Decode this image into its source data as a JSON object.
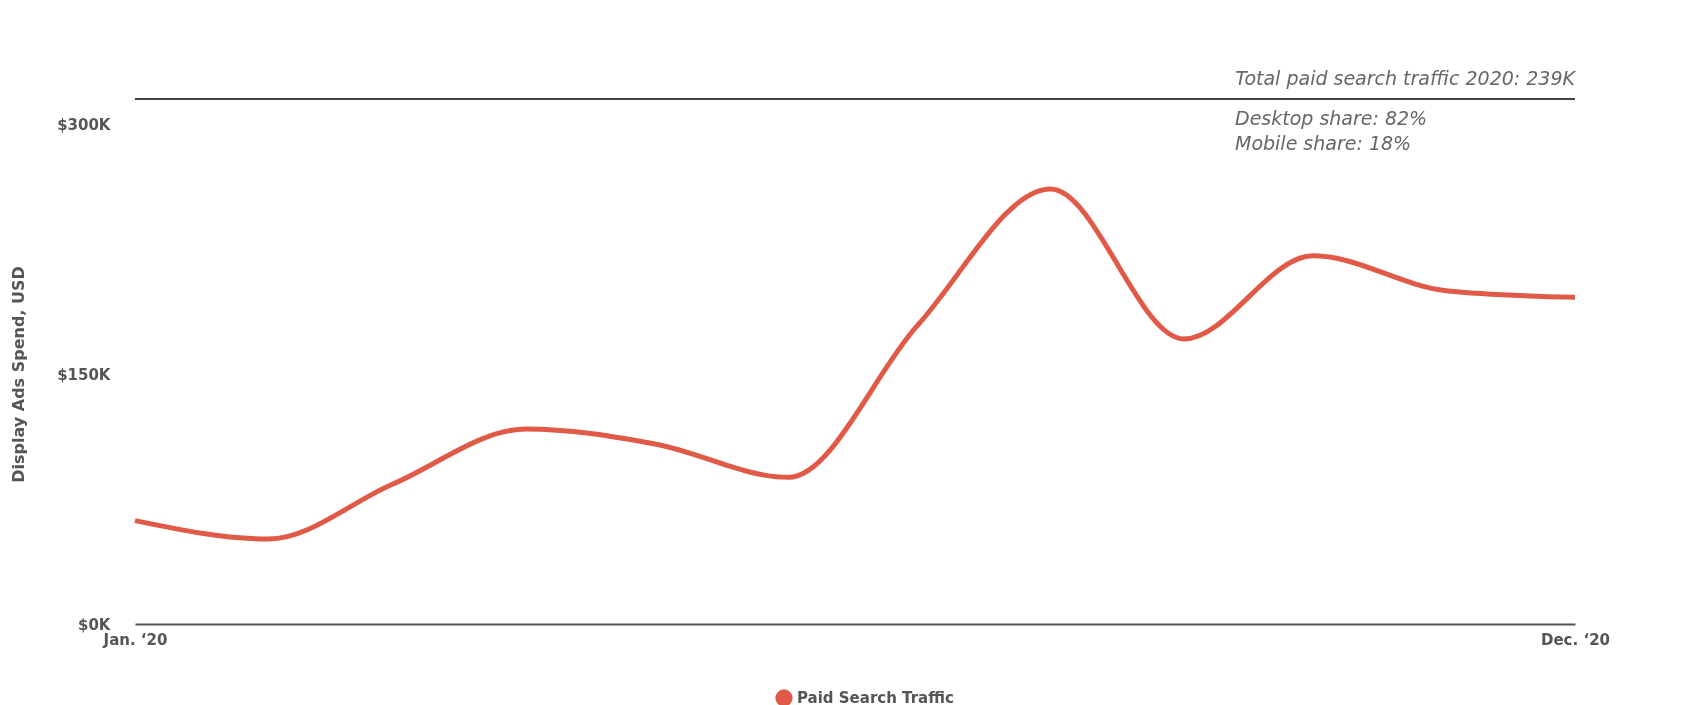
{
  "chart_data": {
    "type": "line",
    "ylabel": "Display Ads Spend, USD",
    "x": [
      "2020-01",
      "2020-02",
      "2020-03",
      "2020-04",
      "2020-05",
      "2020-06",
      "2020-07",
      "2020-08",
      "2020-09",
      "2020-10",
      "2020-11",
      "2020-12"
    ],
    "xticks": [
      {
        "value": "2020-01",
        "label": "Jan. ‘20"
      },
      {
        "value": "2020-12",
        "label": "Dec. ‘20"
      }
    ],
    "xlim": [
      "2020-01",
      "2020-12"
    ],
    "series": [
      {
        "name": "Paid Search Traffic",
        "color": "#e05a47",
        "values": [
          62,
          51,
          84,
          117,
          108,
          88,
          179,
          261,
          171,
          221,
          200,
          196
        ]
      }
    ],
    "ylim": [
      0,
      300
    ],
    "yticks": [
      {
        "value": 0,
        "label": "$0K"
      },
      {
        "value": 150,
        "label": "$150K"
      },
      {
        "value": 300,
        "label": "$300K"
      }
    ],
    "grid": false,
    "legend": "bottom",
    "marker": "none",
    "line_style": "solid",
    "annotations": [
      "Total paid search traffic 2020: 239K",
      "Desktop share: 82%",
      "Mobile share: 18%"
    ]
  }
}
